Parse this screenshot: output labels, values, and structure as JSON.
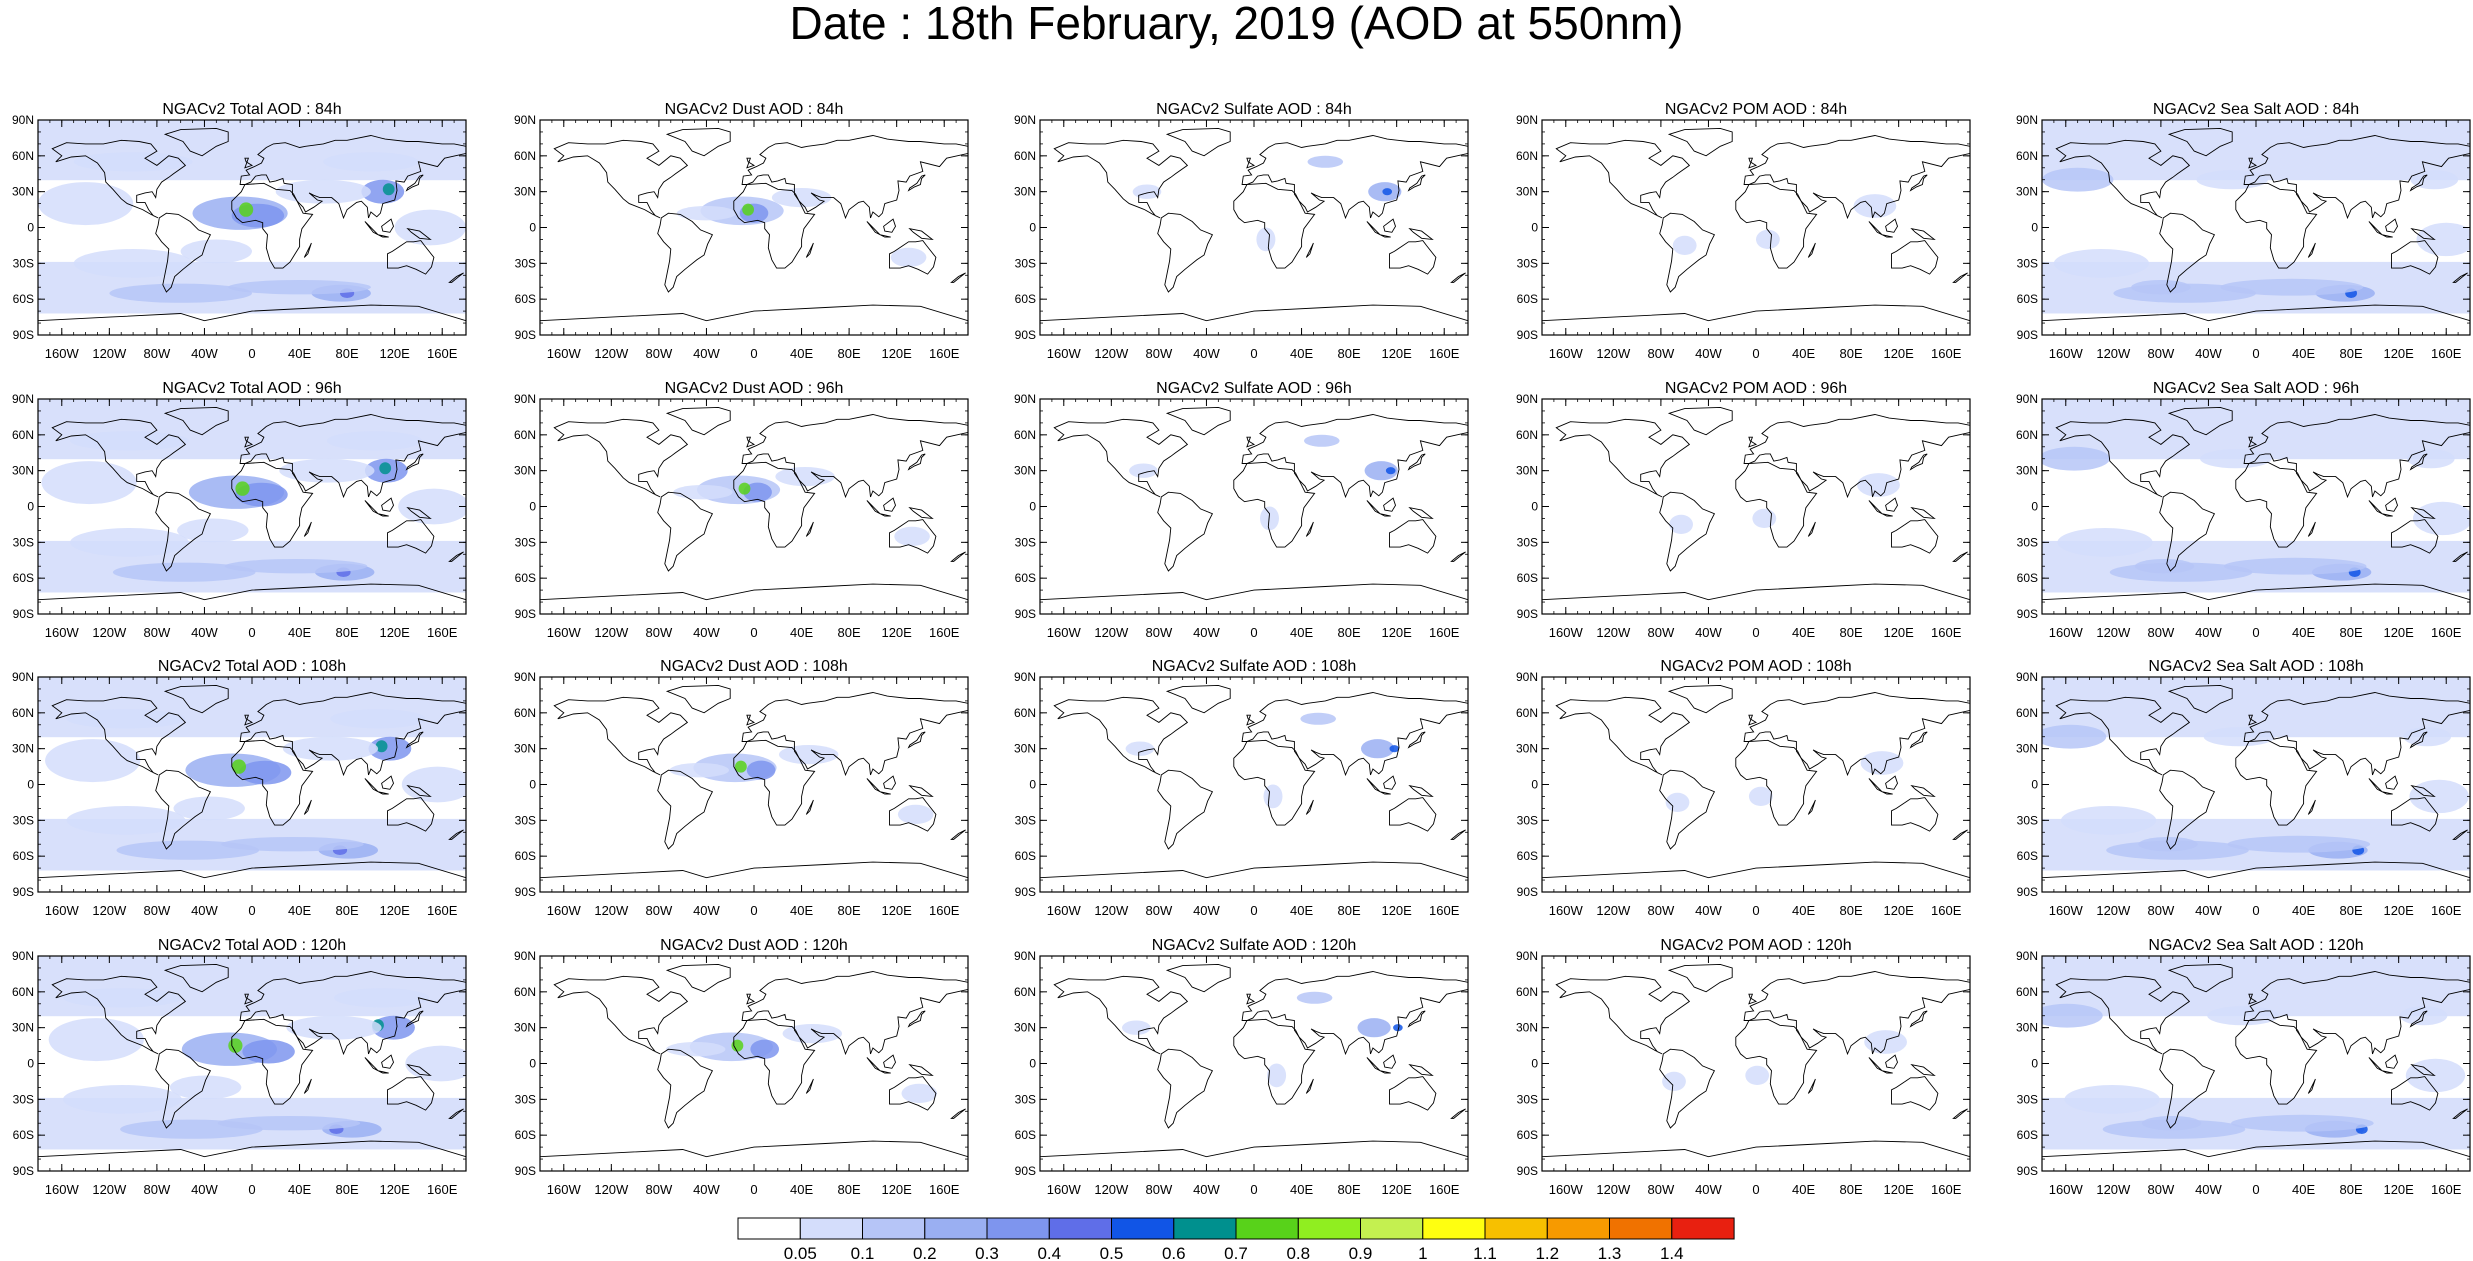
{
  "figure_title": "Date : 18th February, 2019 (AOD at 550nm)",
  "panels": [
    [
      "NGACv2 Total AOD : 84h",
      "NGACv2 Dust AOD : 84h",
      "NGACv2 Sulfate AOD : 84h",
      "NGACv2 POM AOD : 84h",
      "NGACv2 Sea Salt AOD : 84h"
    ],
    [
      "NGACv2 Total AOD : 96h",
      "NGACv2 Dust AOD : 96h",
      "NGACv2 Sulfate AOD : 96h",
      "NGACv2 POM AOD : 96h",
      "NGACv2 Sea Salt AOD : 96h"
    ],
    [
      "NGACv2 Total AOD : 108h",
      "NGACv2 Dust AOD : 108h",
      "NGACv2 Sulfate AOD : 108h",
      "NGACv2 POM AOD : 108h",
      "NGACv2 Sea Salt AOD : 108h"
    ],
    [
      "NGACv2 Total AOD : 120h",
      "NGACv2 Dust AOD : 120h",
      "NGACv2 Sulfate AOD : 120h",
      "NGACv2 POM AOD : 120h",
      "NGACv2 Sea Salt  AOD : 120h"
    ]
  ],
  "lat_ticks": [
    "90N",
    "60N",
    "30N",
    "0",
    "30S",
    "60S",
    "90S"
  ],
  "lon_ticks": [
    "160W",
    "120W",
    "80W",
    "40W",
    "0",
    "40E",
    "80E",
    "120E",
    "160E"
  ],
  "lat_tick_values": [
    90,
    60,
    30,
    0,
    -30,
    -60,
    -90
  ],
  "lon_tick_values": [
    -160,
    -120,
    -80,
    -40,
    0,
    40,
    80,
    120,
    160
  ],
  "colorbar": {
    "labels": [
      "0.05",
      "0.1",
      "0.2",
      "0.3",
      "0.4",
      "0.5",
      "0.6",
      "0.7",
      "0.8",
      "0.9",
      "1",
      "1.1",
      "1.2",
      "1.3",
      "1.4"
    ],
    "colors": [
      "#ffffff",
      "#d4ddfb",
      "#b6c5f7",
      "#9aaff2",
      "#7e95ee",
      "#5f6ee8",
      "#1155e6",
      "#00908e",
      "#58d21a",
      "#90ee20",
      "#c4f050",
      "#ffff10",
      "#f7c000",
      "#f79a00",
      "#f07200",
      "#e82010"
    ]
  }
}
